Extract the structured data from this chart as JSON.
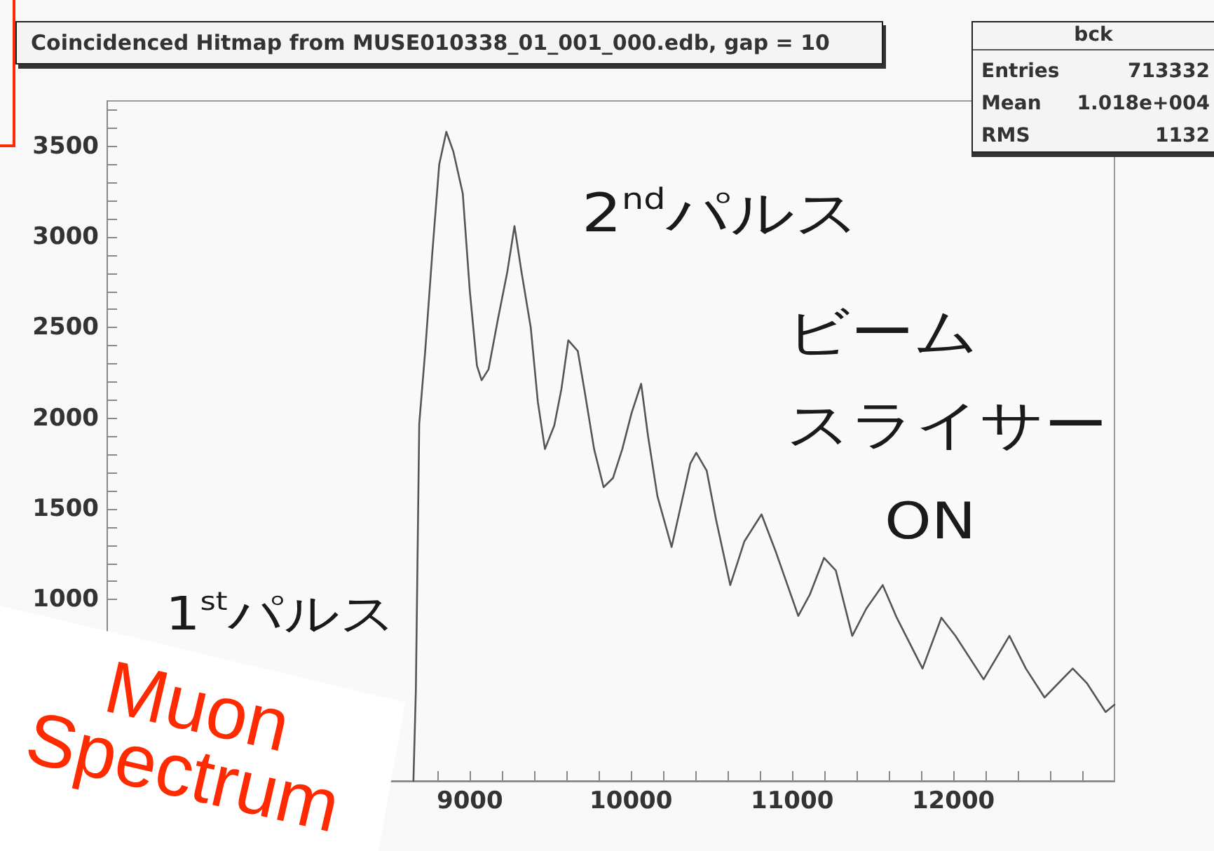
{
  "chart_data": {
    "type": "line",
    "title": "Coincidenced Hitmap from MUSE010338_01_001_000.edb, gap = 10",
    "annotations": [
      "bck",
      "Entries",
      "713332",
      "Mean",
      "1.018e+004",
      "RMS",
      "1132",
      "2$^{nd}$パルス",
      "ビーム",
      "スライサー",
      "ON",
      "1$^{st}$パルス",
      "Muon Spectrum"
    ],
    "x": [
      8650,
      8665,
      8686,
      8723,
      8767,
      8810,
      8854,
      8898,
      8956,
      9000,
      9044,
      9073,
      9116,
      9175,
      9233,
      9277,
      9320,
      9378,
      9422,
      9466,
      9524,
      9568,
      9611,
      9670,
      9714,
      9771,
      9830,
      9888,
      9946,
      10004,
      10063,
      10106,
      10164,
      10252,
      10310,
      10368,
      10405,
      10470,
      10528,
      10616,
      10703,
      10810,
      10900,
      11038,
      11111,
      11198,
      11271,
      11373,
      11460,
      11562,
      11649,
      11809,
      11926,
      12013,
      12188,
      12348,
      12450,
      12566,
      12741,
      12828,
      12945,
      13000
    ],
    "values": [
      0,
      500,
      1970,
      2370,
      2910,
      3400,
      3580,
      3470,
      3240,
      2700,
      2290,
      2210,
      2270,
      2550,
      2810,
      3060,
      2810,
      2500,
      2090,
      1830,
      1960,
      2160,
      2430,
      2370,
      2140,
      1830,
      1620,
      1670,
      1830,
      2030,
      2190,
      1900,
      1570,
      1290,
      1520,
      1750,
      1810,
      1710,
      1440,
      1080,
      1320,
      1470,
      1260,
      910,
      1030,
      1230,
      1160,
      800,
      950,
      1080,
      900,
      620,
      900,
      800,
      560,
      800,
      620,
      460,
      620,
      540,
      380,
      420
    ],
    "color": "#555555",
    "marker": "none",
    "xlim": [
      6750,
      13000
    ],
    "ylim": [
      0,
      3750
    ],
    "xticks": [
      {
        "value": 8800,
        "label": null
      },
      9000,
      {
        "value": 9200,
        "label": null
      },
      {
        "value": 9400,
        "label": null
      },
      {
        "value": 9600,
        "label": null
      },
      {
        "value": 9800,
        "label": null
      },
      10000,
      {
        "value": 10200,
        "label": null
      },
      {
        "value": 10400,
        "label": null
      },
      {
        "value": 10600,
        "label": null
      },
      {
        "value": 10800,
        "label": null
      },
      11000,
      {
        "value": 11200,
        "label": null
      },
      {
        "value": 11400,
        "label": null
      },
      {
        "value": 11600,
        "label": null
      },
      {
        "value": 11800,
        "label": null
      },
      12000,
      {
        "value": 12200,
        "label": null
      },
      {
        "value": 12400,
        "label": null
      },
      {
        "value": 12600,
        "label": null
      },
      {
        "value": 12800,
        "label": null
      }
    ],
    "yticks": [
      1000,
      {
        "value": 1100,
        "label": null
      },
      {
        "value": 1200,
        "label": null
      },
      {
        "value": 1300,
        "label": null
      },
      {
        "value": 1400,
        "label": null
      },
      1500,
      {
        "value": 1600,
        "label": null
      },
      {
        "value": 1700,
        "label": null
      },
      {
        "value": 1800,
        "label": null
      },
      {
        "value": 1900,
        "label": null
      },
      2000,
      {
        "value": 2100,
        "label": null
      },
      {
        "value": 2200,
        "label": null
      },
      {
        "value": 2300,
        "label": null
      },
      {
        "value": 2400,
        "label": null
      },
      2500,
      {
        "value": 2600,
        "label": null
      },
      {
        "value": 2700,
        "label": null
      },
      {
        "value": 2800,
        "label": null
      },
      {
        "value": 2900,
        "label": null
      },
      3000,
      {
        "value": 3100,
        "label": null
      },
      {
        "value": 3200,
        "label": null
      },
      {
        "value": 3300,
        "label": null
      },
      {
        "value": 3400,
        "label": null
      },
      3500,
      {
        "value": 3600,
        "label": null
      },
      {
        "value": 3700,
        "label": null
      }
    ]
  }
}
